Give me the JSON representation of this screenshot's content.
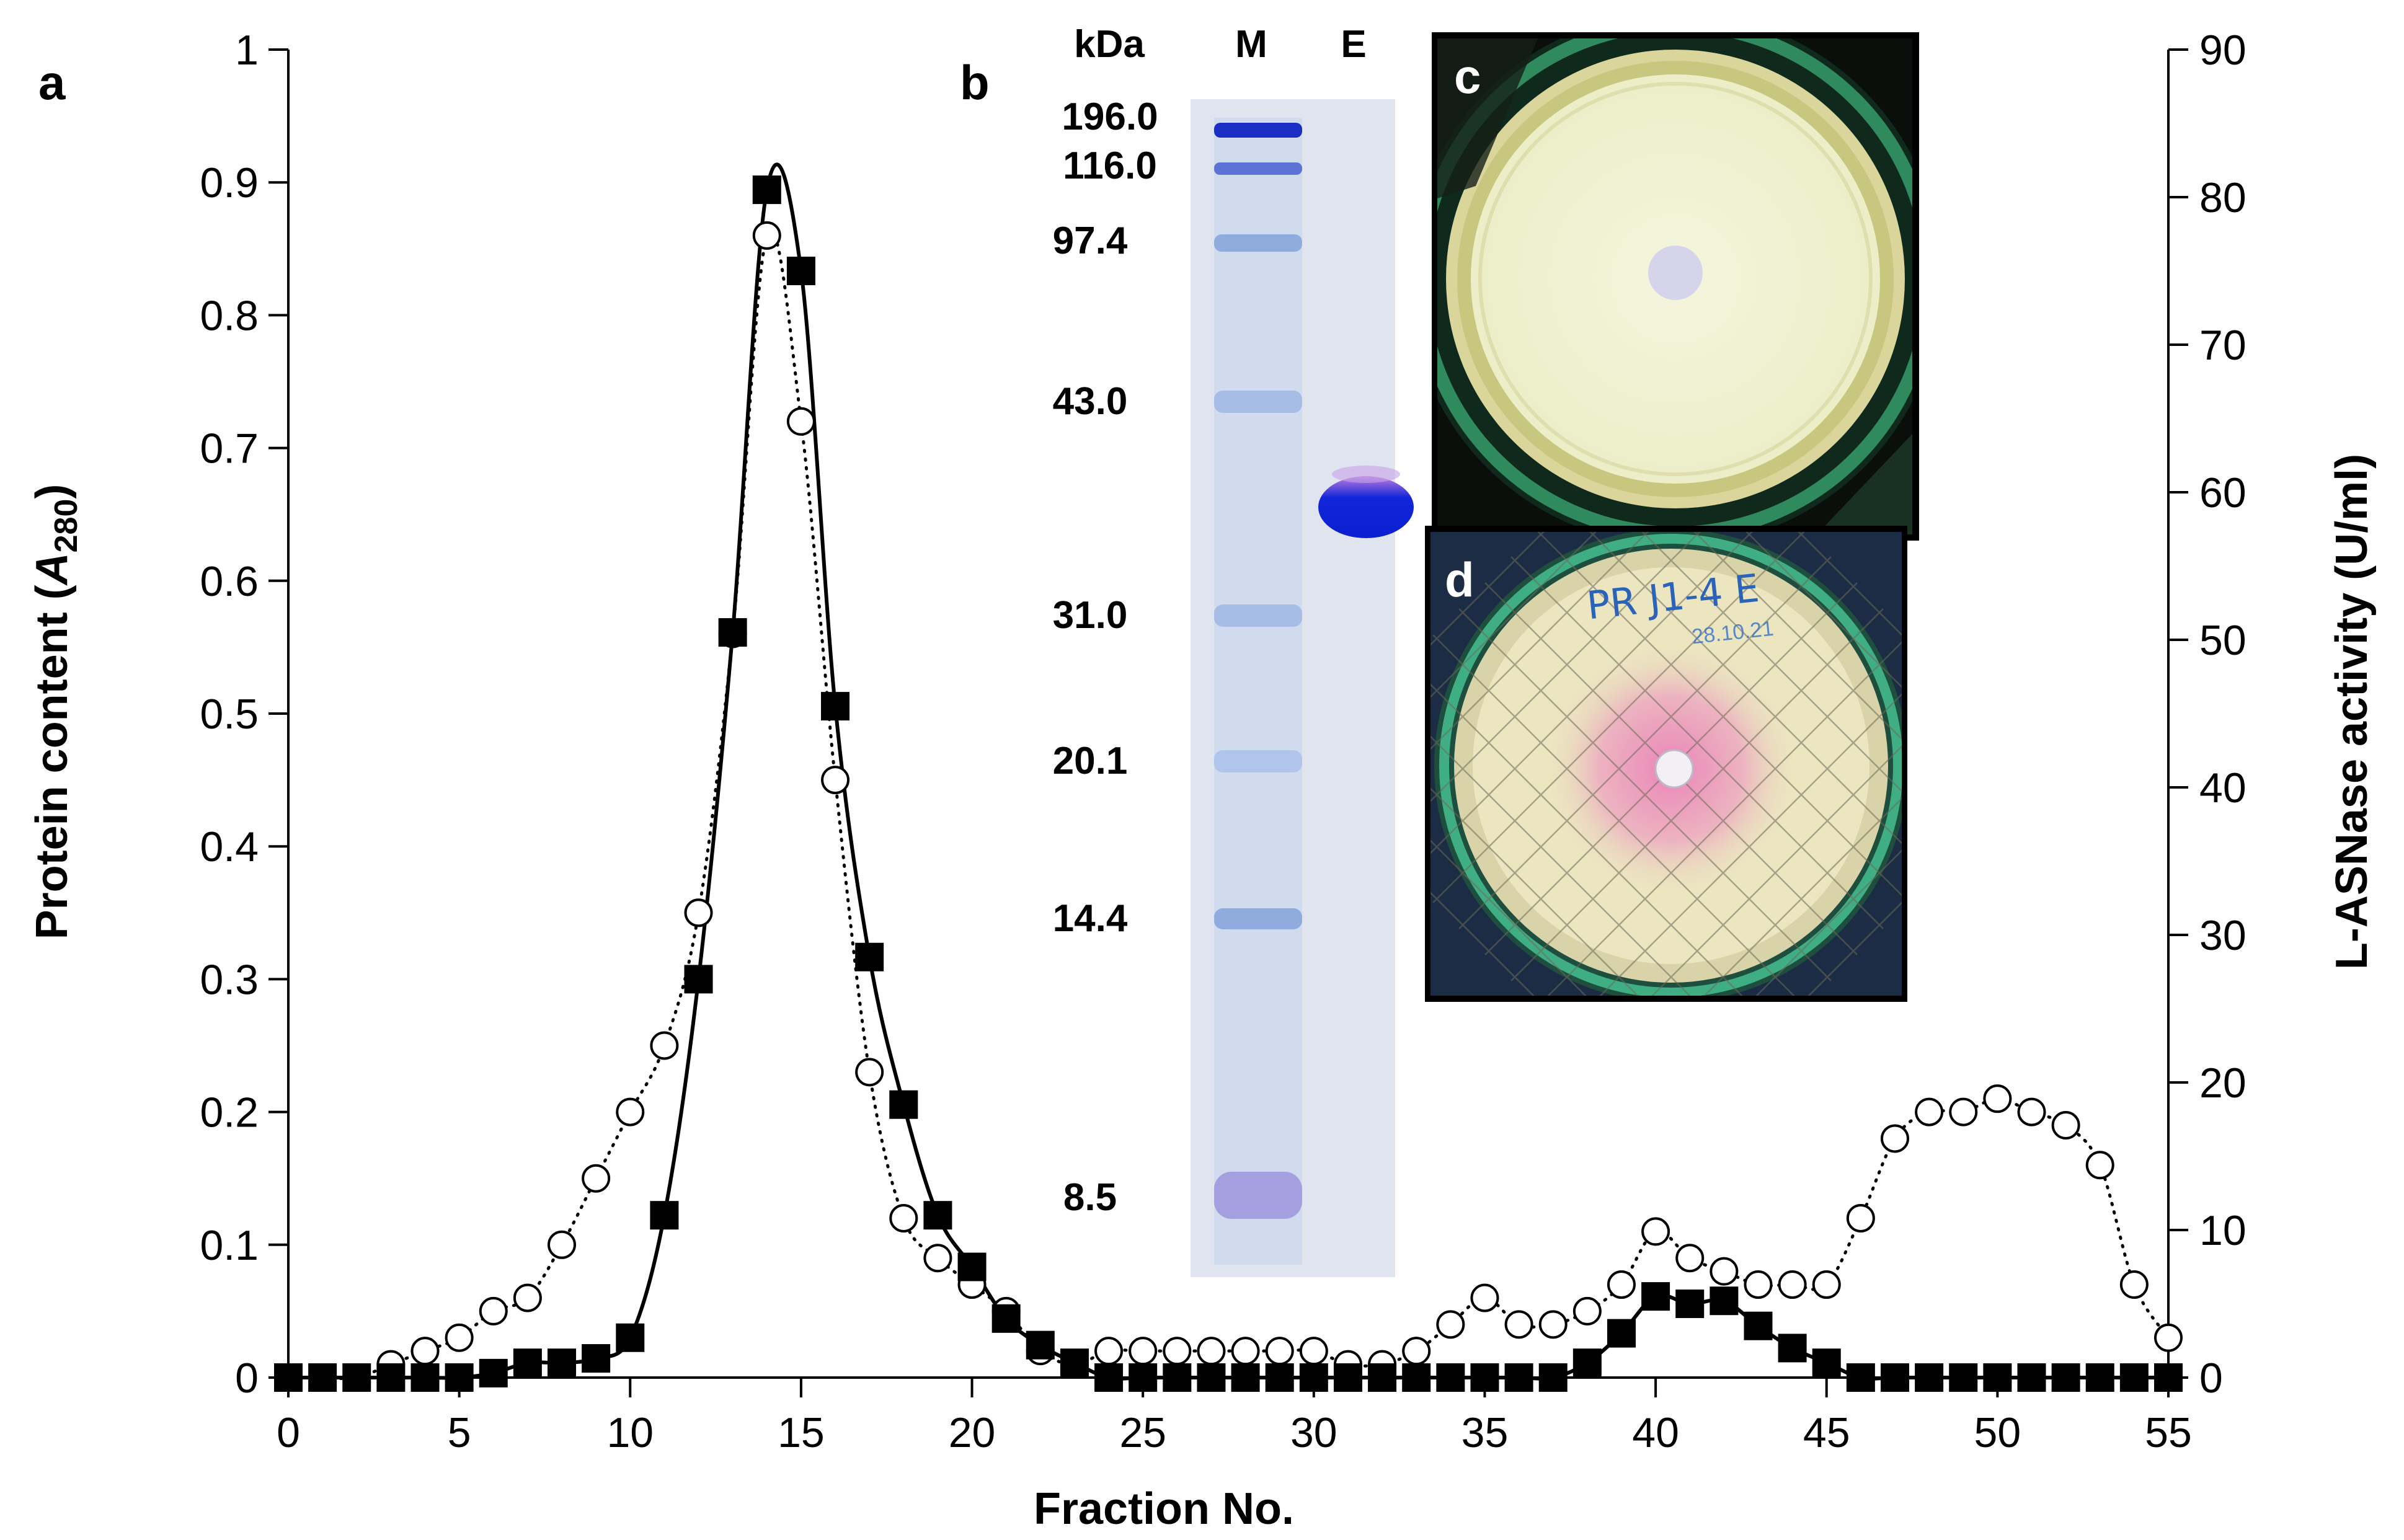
{
  "chart_data": {
    "type": "line",
    "xlabel": "Fraction No.",
    "ylabel": "Protein content (A280)",
    "ylabel_parts": {
      "before": "Protein content (",
      "italic": "A",
      "subscript": "280",
      "after": ")"
    },
    "y2label": "L-ASNase activity (U/ml)",
    "xlim": [
      0,
      55
    ],
    "ylim": [
      0,
      1
    ],
    "y2lim": [
      0,
      90
    ],
    "xticks": [
      "0",
      "5",
      "10",
      "15",
      "20",
      "25",
      "30",
      "35",
      "40",
      "45",
      "50",
      "55"
    ],
    "yticks": [
      "0",
      "0.1",
      "0.2",
      "0.3",
      "0.4",
      "0.5",
      "0.6",
      "0.7",
      "0.8",
      "0.9",
      "1"
    ],
    "y2ticks": [
      "0",
      "10",
      "20",
      "30",
      "40",
      "50",
      "60",
      "70",
      "80",
      "90"
    ],
    "series": [
      {
        "name": "Protein content (A280)",
        "axis": "left",
        "marker": "open-circle",
        "line": "dotted",
        "x": [
          0,
          1,
          2,
          3,
          4,
          5,
          6,
          7,
          8,
          9,
          10,
          11,
          12,
          13,
          14,
          15,
          16,
          17,
          18,
          19,
          20,
          21,
          22,
          23,
          24,
          25,
          26,
          27,
          28,
          29,
          30,
          31,
          32,
          33,
          34,
          35,
          36,
          37,
          38,
          39,
          40,
          41,
          42,
          43,
          44,
          45,
          46,
          47,
          48,
          49,
          50,
          51,
          52,
          53,
          54,
          55
        ],
        "values": [
          0,
          0,
          0,
          0.01,
          0.02,
          0.03,
          0.05,
          0.06,
          0.1,
          0.15,
          0.2,
          0.25,
          0.35,
          0.56,
          0.86,
          0.72,
          0.45,
          0.23,
          0.12,
          0.09,
          0.07,
          0.05,
          0.02,
          0.01,
          0.02,
          0.02,
          0.02,
          0.02,
          0.02,
          0.02,
          0.02,
          0.01,
          0.01,
          0.02,
          0.04,
          0.06,
          0.04,
          0.04,
          0.05,
          0.07,
          0.11,
          0.09,
          0.08,
          0.07,
          0.07,
          0.07,
          0.12,
          0.18,
          0.2,
          0.2,
          0.21,
          0.2,
          0.19,
          0.16,
          0.07,
          0.03
        ]
      },
      {
        "name": "L-ASNase activity (U/ml)",
        "axis": "right",
        "marker": "filled-square",
        "line": "solid-smooth",
        "x": [
          0,
          1,
          2,
          3,
          4,
          5,
          6,
          7,
          8,
          9,
          10,
          11,
          12,
          13,
          14,
          15,
          16,
          17,
          18,
          19,
          20,
          21,
          22,
          23,
          24,
          25,
          26,
          27,
          28,
          29,
          30,
          31,
          32,
          33,
          34,
          35,
          36,
          37,
          38,
          39,
          40,
          41,
          42,
          43,
          44,
          45,
          46,
          47,
          48,
          49,
          50,
          51,
          52,
          53,
          54,
          55
        ],
        "values": [
          0,
          0,
          0,
          0,
          0,
          0,
          0.3,
          1,
          1,
          1.3,
          2.7,
          11,
          27,
          50.5,
          80.5,
          75,
          45.5,
          28.5,
          18.5,
          11,
          7.5,
          4,
          2.2,
          1,
          0,
          0,
          0,
          0,
          0,
          0,
          0,
          0,
          0,
          0,
          0,
          0,
          0,
          0,
          1,
          3,
          5.5,
          5,
          5.2,
          3.5,
          2,
          1,
          0,
          0,
          0,
          0,
          0,
          0,
          0,
          0,
          0,
          0
        ]
      }
    ],
    "panels": [
      "a",
      "b",
      "c",
      "d"
    ]
  },
  "gel": {
    "unit_label": "kDa",
    "lane_labels": [
      "M",
      "E"
    ],
    "marker_labels": [
      "196.0",
      "116.0",
      "97.4",
      "43.0",
      "31.0",
      "20.1",
      "14.4",
      "8.5"
    ]
  },
  "plate_d": {
    "handwriting": "PR J1-4 E",
    "stamp": "28.10.21"
  },
  "colors": {
    "gel_background": "#dfe4ef",
    "marker_band_dark": "#1b2ec4",
    "marker_band_light": "#a7bde6",
    "enzyme_band": "#1026d8",
    "plate_c_medium": "#f1f2d7",
    "plate_d_medium": "#ebe6c0",
    "plate_d_pink": "#ea7eb8",
    "photo_background": "#0b0f0c"
  }
}
